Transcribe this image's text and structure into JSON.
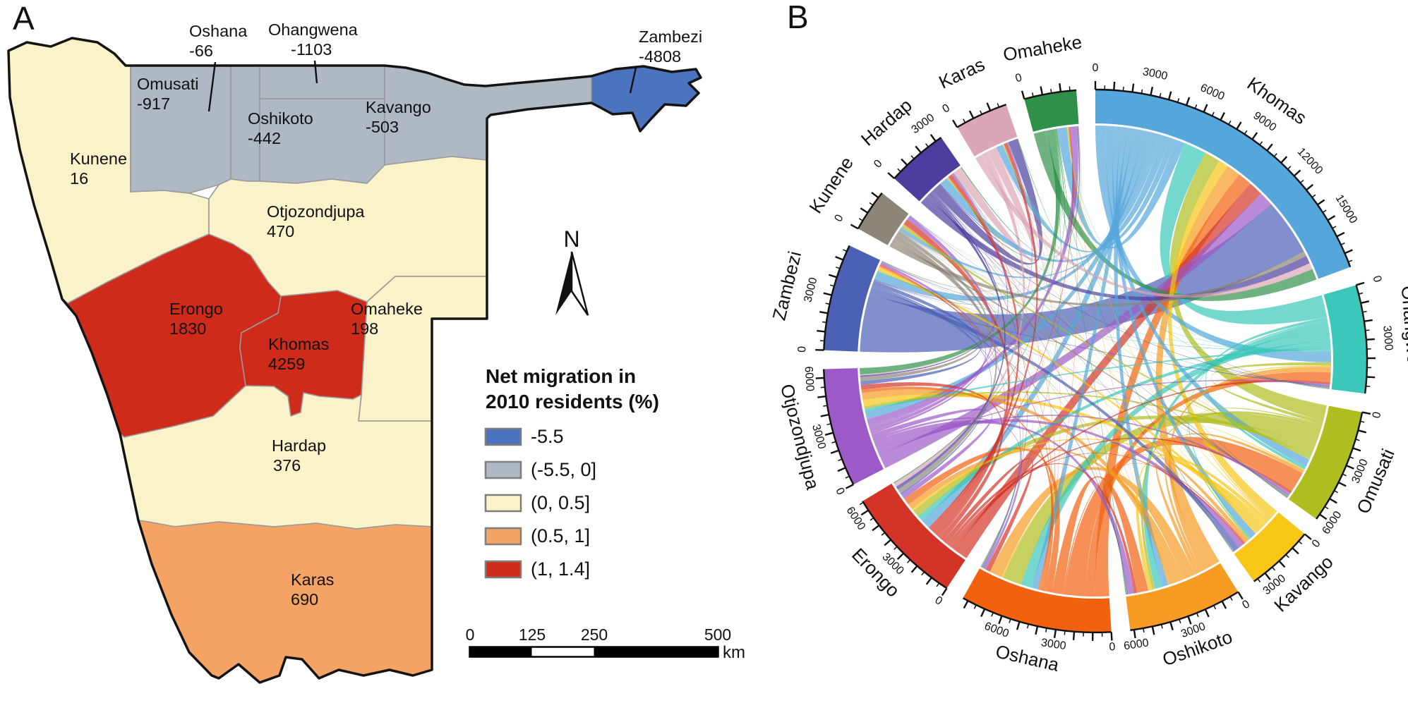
{
  "panels": {
    "a_letter": "A",
    "b_letter": "B"
  },
  "map": {
    "north_label": "N",
    "scale_bar": {
      "tick_labels": [
        "0",
        "125",
        "250",
        "500"
      ],
      "unit": "km"
    }
  },
  "chart_data": [
    {
      "type": "choropleth-map",
      "title_line1": "Net migration in",
      "title_line2": "2010 residents (%)",
      "legend_classes": [
        {
          "label": "-5.5",
          "color": "#4C73BF"
        },
        {
          "label": "(-5.5, 0]",
          "color": "#AEB9C3"
        },
        {
          "label": "(0, 0.5]",
          "color": "#FAF3C9"
        },
        {
          "label": "(0.5, 1]",
          "color": "#F5A364"
        },
        {
          "label": "(1, 1.4]",
          "color": "#CF2B1B"
        }
      ],
      "regions": [
        {
          "name": "Kunene",
          "value": "16",
          "class": 2
        },
        {
          "name": "Omusati",
          "value": "-917",
          "class": 1
        },
        {
          "name": "Oshana",
          "value": "-66",
          "class": 1
        },
        {
          "name": "Ohangwena",
          "value": "-1103",
          "class": 1
        },
        {
          "name": "Oshikoto",
          "value": "-442",
          "class": 1
        },
        {
          "name": "Kavango",
          "value": "-503",
          "class": 1
        },
        {
          "name": "Zambezi",
          "value": "-4808",
          "class": 0
        },
        {
          "name": "Otjozondjupa",
          "value": "470",
          "class": 2
        },
        {
          "name": "Omaheke",
          "value": "198",
          "class": 2
        },
        {
          "name": "Erongo",
          "value": "1830",
          "class": 4
        },
        {
          "name": "Khomas",
          "value": "4259",
          "class": 4
        },
        {
          "name": "Hardap",
          "value": "376",
          "class": 2
        },
        {
          "name": "Karas",
          "value": "690",
          "class": 3
        }
      ],
      "scale_bar_km": [
        0,
        125,
        250,
        500
      ]
    },
    {
      "type": "chord",
      "categories": [
        "Khomas",
        "Ohangwena",
        "Omusati",
        "Kavango",
        "Oshikoto",
        "Oshana",
        "Erongo",
        "Otjozondjupa",
        "Zambezi",
        "Kunene",
        "Hardap",
        "Karas",
        "Omaheke"
      ],
      "colors": [
        "#55A7DB",
        "#3BC7B9",
        "#AFBE1F",
        "#F7C617",
        "#F79B22",
        "#F2610E",
        "#D43327",
        "#9C5AC8",
        "#4C60B6",
        "#8D8578",
        "#4C3E9F",
        "#DBA6B7",
        "#2F9149"
      ],
      "axis": {
        "minor_tick": 500,
        "major_tick": 1000,
        "label_step": 3000
      },
      "matrix": [
        [
          0,
          700,
          500,
          400,
          400,
          400,
          600,
          500,
          500,
          200,
          500,
          400,
          600
        ],
        [
          1400,
          0,
          200,
          100,
          450,
          700,
          350,
          150,
          50,
          30,
          40,
          30,
          30
        ],
        [
          1000,
          200,
          0,
          80,
          200,
          1200,
          450,
          150,
          30,
          150,
          30,
          20,
          20
        ],
        [
          600,
          80,
          60,
          0,
          250,
          80,
          150,
          400,
          200,
          20,
          30,
          20,
          40
        ],
        [
          900,
          350,
          200,
          250,
          0,
          800,
          350,
          450,
          60,
          30,
          30,
          20,
          40
        ],
        [
          900,
          600,
          1300,
          80,
          700,
          0,
          450,
          200,
          80,
          50,
          40,
          30,
          30
        ],
        [
          900,
          150,
          150,
          100,
          200,
          300,
          0,
          300,
          60,
          350,
          250,
          200,
          60
        ],
        [
          900,
          100,
          150,
          350,
          350,
          150,
          300,
          0,
          150,
          250,
          100,
          60,
          400
        ],
        [
          3600,
          60,
          30,
          350,
          60,
          60,
          100,
          250,
          0,
          20,
          30,
          20,
          30
        ],
        [
          300,
          30,
          120,
          20,
          30,
          50,
          300,
          250,
          20,
          0,
          20,
          10,
          20
        ],
        [
          500,
          40,
          30,
          30,
          30,
          40,
          200,
          100,
          30,
          20,
          0,
          600,
          60
        ],
        [
          400,
          30,
          20,
          20,
          20,
          30,
          250,
          60,
          20,
          10,
          550,
          0,
          50
        ],
        [
          700,
          30,
          20,
          40,
          40,
          30,
          60,
          400,
          30,
          20,
          60,
          40,
          0
        ]
      ]
    }
  ]
}
